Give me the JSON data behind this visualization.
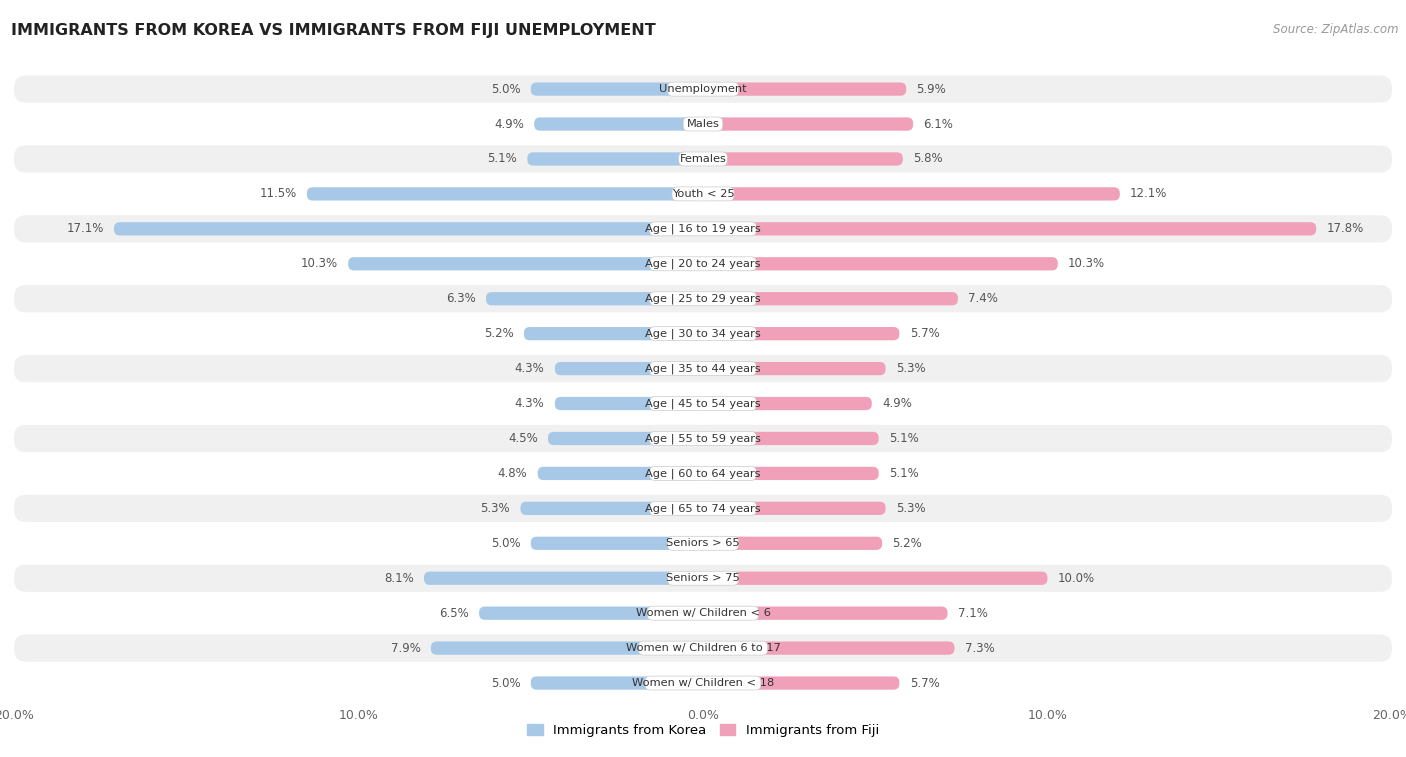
{
  "title": "IMMIGRANTS FROM KOREA VS IMMIGRANTS FROM FIJI UNEMPLOYMENT",
  "source": "Source: ZipAtlas.com",
  "categories": [
    "Unemployment",
    "Males",
    "Females",
    "Youth < 25",
    "Age | 16 to 19 years",
    "Age | 20 to 24 years",
    "Age | 25 to 29 years",
    "Age | 30 to 34 years",
    "Age | 35 to 44 years",
    "Age | 45 to 54 years",
    "Age | 55 to 59 years",
    "Age | 60 to 64 years",
    "Age | 65 to 74 years",
    "Seniors > 65",
    "Seniors > 75",
    "Women w/ Children < 6",
    "Women w/ Children 6 to 17",
    "Women w/ Children < 18"
  ],
  "korea_values": [
    5.0,
    4.9,
    5.1,
    11.5,
    17.1,
    10.3,
    6.3,
    5.2,
    4.3,
    4.3,
    4.5,
    4.8,
    5.3,
    5.0,
    8.1,
    6.5,
    7.9,
    5.0
  ],
  "fiji_values": [
    5.9,
    6.1,
    5.8,
    12.1,
    17.8,
    10.3,
    7.4,
    5.7,
    5.3,
    4.9,
    5.1,
    5.1,
    5.3,
    5.2,
    10.0,
    7.1,
    7.3,
    5.7
  ],
  "korea_color": "#A8C8E8",
  "fiji_color": "#F0A0B8",
  "axis_limit": 20.0,
  "background_color": "#ffffff",
  "row_color_odd": "#f0f0f0",
  "row_color_even": "#ffffff",
  "legend_korea": "Immigrants from Korea",
  "legend_fiji": "Immigrants from Fiji",
  "label_box_color": "#ffffff",
  "value_color": "#555555",
  "text_color": "#333333"
}
